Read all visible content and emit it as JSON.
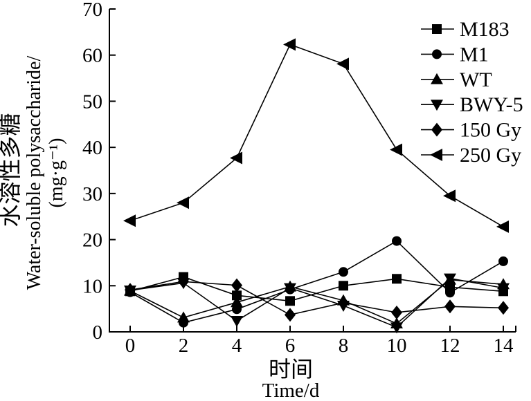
{
  "figure": {
    "background": "#ffffff",
    "foreground": "#000000"
  },
  "chart_data": {
    "type": "line",
    "title": "",
    "xlabel_zh": "时间",
    "xlabel_en": "Time/d",
    "ylabel_zh": "水溶性多糖",
    "ylabel_en": "Water-soluble polysaccharide/",
    "ylabel_unit": "(mg·g⁻¹)",
    "x": [
      0,
      2,
      4,
      6,
      8,
      10,
      12,
      14
    ],
    "xticks": [
      0,
      2,
      4,
      6,
      8,
      10,
      12,
      14
    ],
    "yticks": [
      0,
      10,
      20,
      30,
      40,
      50,
      60,
      70
    ],
    "xlim": [
      -0.8,
      14.5
    ],
    "ylim": [
      0,
      70
    ],
    "grid": false,
    "legend_position": "top-right",
    "line_color": "#000000",
    "series": [
      {
        "name": "M183",
        "marker": "square",
        "values": [
          8.8,
          11.9,
          7.9,
          6.7,
          10.0,
          11.5,
          9.7,
          8.8
        ]
      },
      {
        "name": "M1",
        "marker": "circle",
        "values": [
          8.6,
          2.0,
          4.9,
          9.2,
          13.0,
          19.7,
          8.5,
          15.3
        ]
      },
      {
        "name": "WT",
        "marker": "triangle-up",
        "values": [
          8.9,
          3.1,
          6.4,
          9.8,
          6.8,
          1.8,
          11.3,
          10.3
        ]
      },
      {
        "name": "BWY-5",
        "marker": "triangle-down",
        "values": [
          9.0,
          10.6,
          2.4,
          9.5,
          5.7,
          1.0,
          11.6,
          9.5
        ]
      },
      {
        "name": "150 Gy",
        "marker": "diamond",
        "values": [
          9.1,
          10.9,
          10.1,
          3.7,
          6.3,
          4.2,
          5.5,
          5.2
        ]
      },
      {
        "name": "250 Gy",
        "marker": "triangle-left",
        "values": [
          24.1,
          28.0,
          37.7,
          62.3,
          58.1,
          39.5,
          29.5,
          22.8
        ]
      }
    ]
  }
}
